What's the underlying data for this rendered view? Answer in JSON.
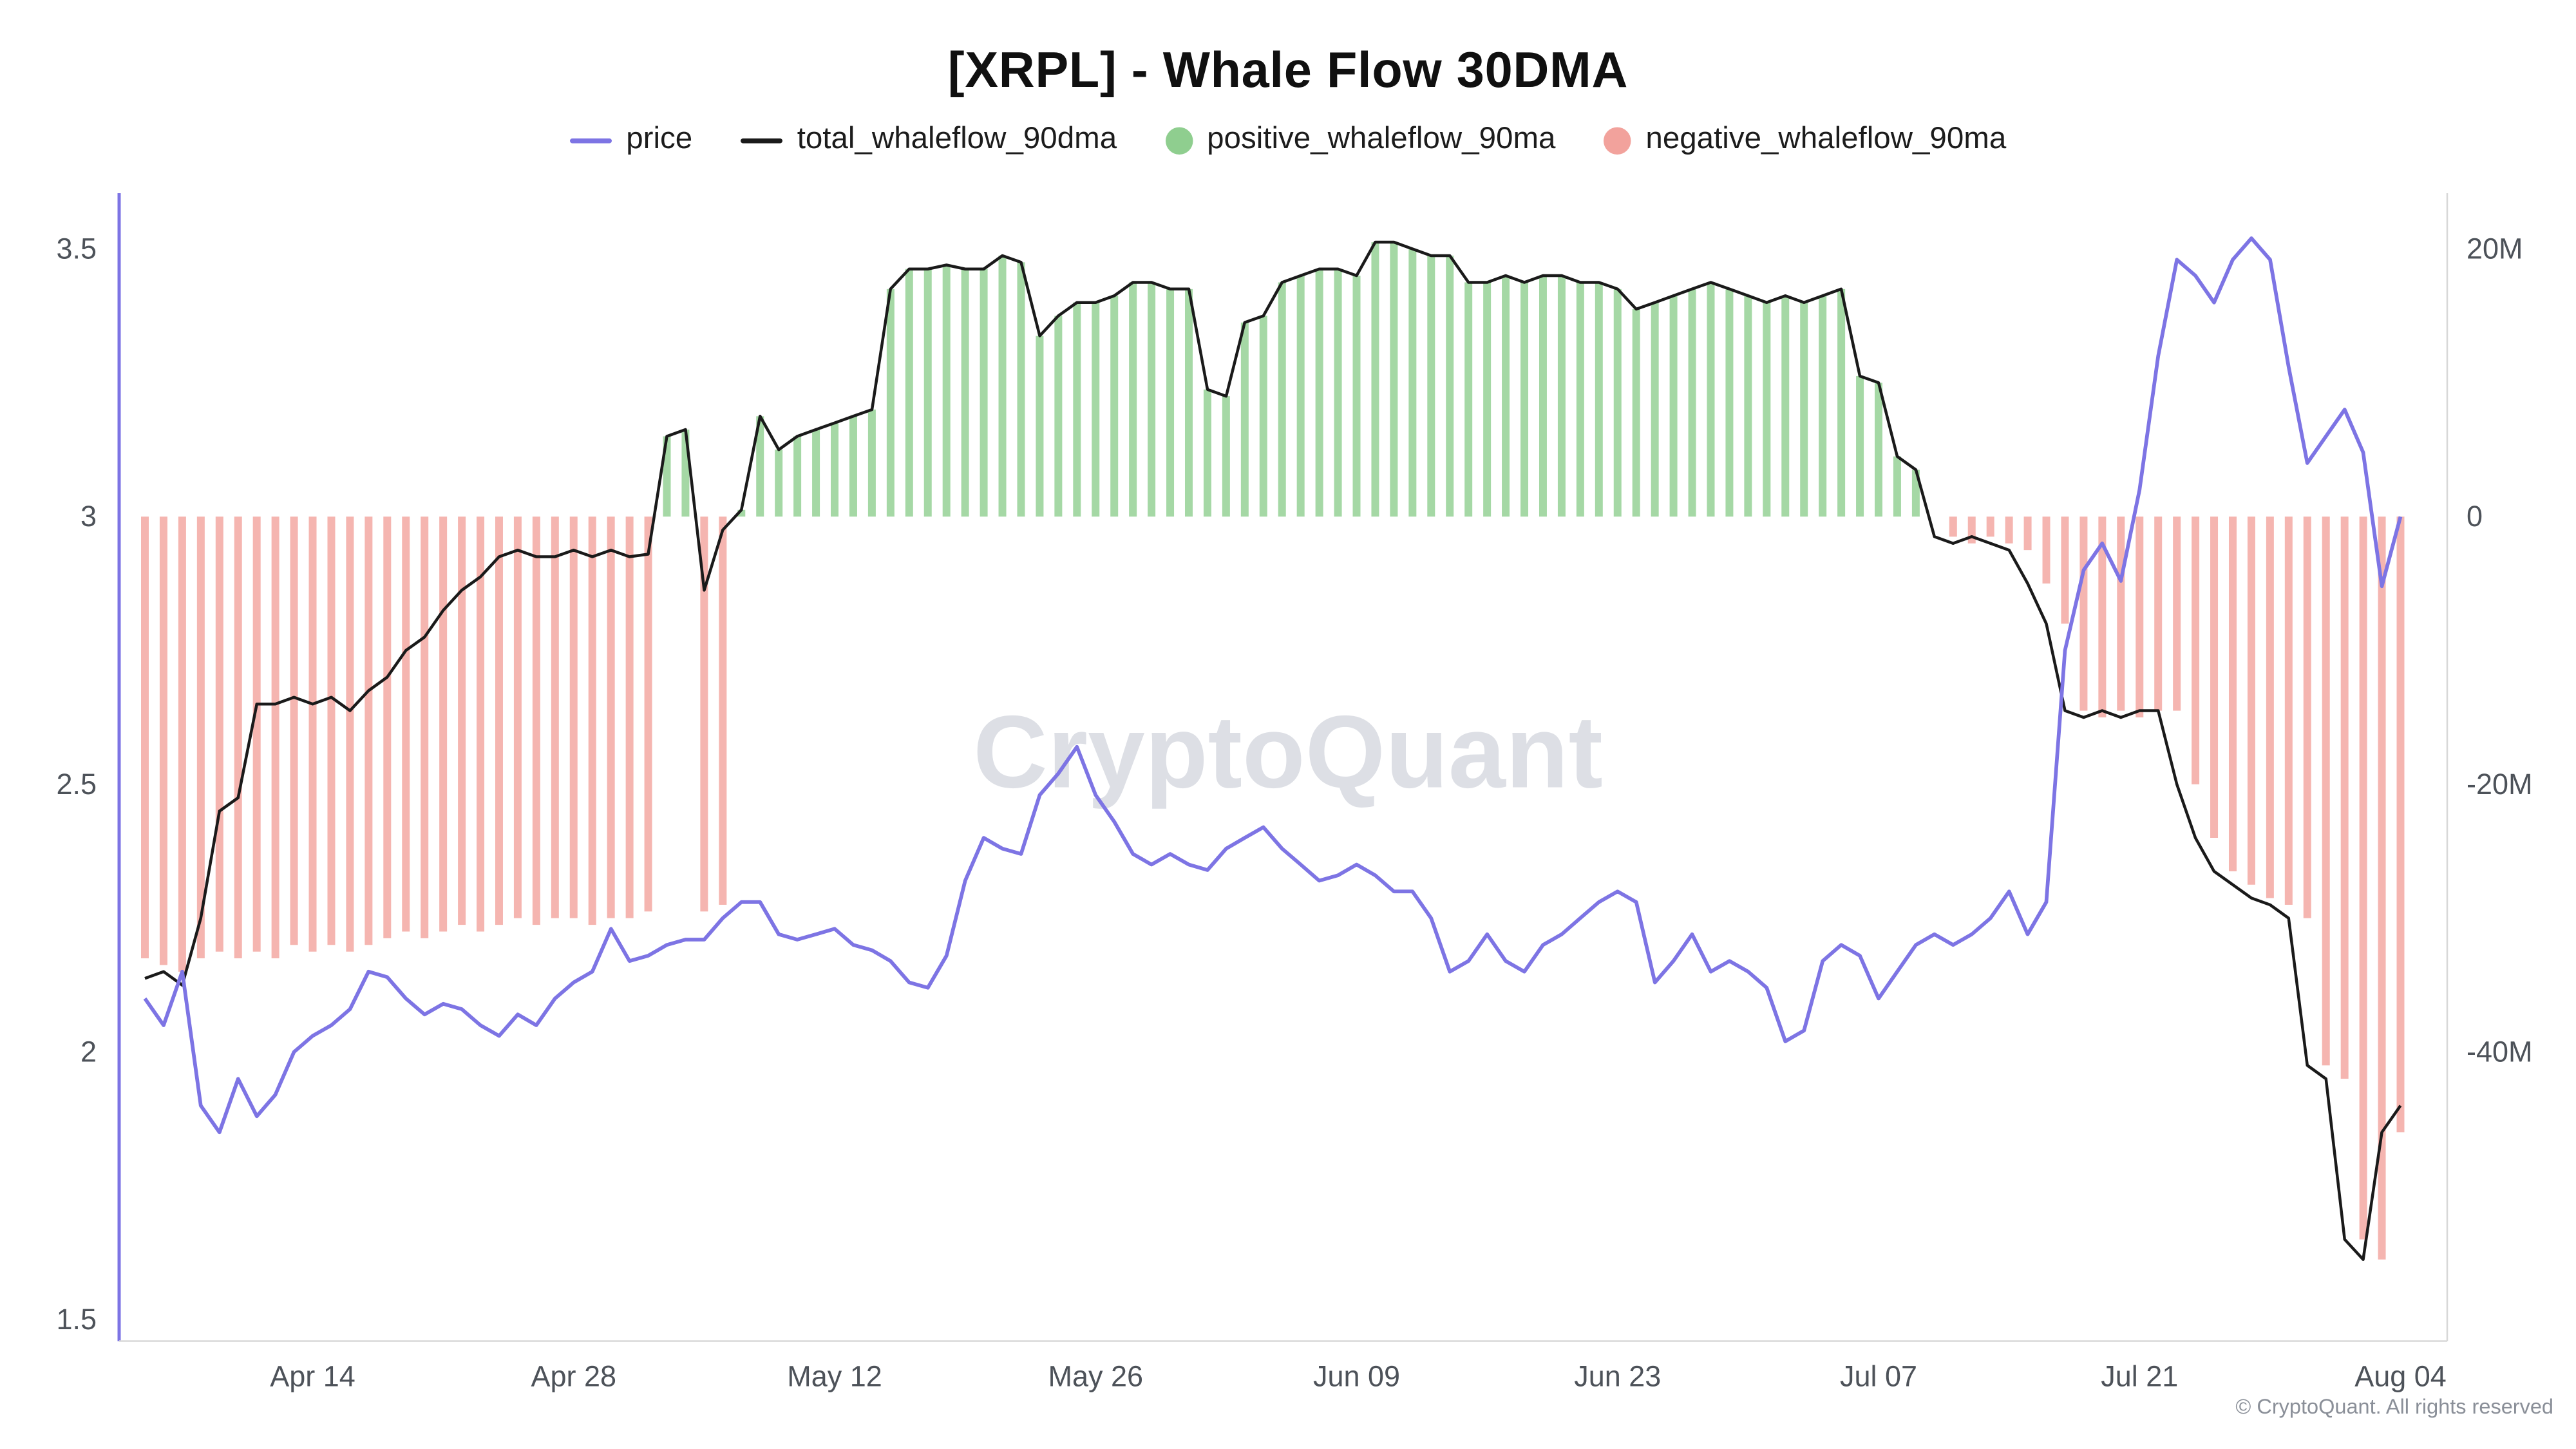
{
  "header": {
    "title": "[XRPL] - Whale Flow 30DMA"
  },
  "watermark": "CryptoQuant",
  "footer": {
    "copyright": "© CryptoQuant. All rights reserved"
  },
  "legend": {
    "items": [
      {
        "label": "price",
        "swatch": "line",
        "color": "#7d74e4"
      },
      {
        "label": "total_whaleflow_90dma",
        "swatch": "line",
        "color": "#1a1a1a"
      },
      {
        "label": "positive_whaleflow_90ma",
        "swatch": "dot",
        "color": "#8fce8f"
      },
      {
        "label": "negative_whaleflow_90ma",
        "swatch": "dot",
        "color": "#f2a29c"
      }
    ]
  },
  "axes": {
    "left": {
      "ticks": [
        {
          "label": "1.5",
          "value": 1.5
        },
        {
          "label": "2",
          "value": 2
        },
        {
          "label": "2.5",
          "value": 2.5
        },
        {
          "label": "3",
          "value": 3
        },
        {
          "label": "3.5",
          "value": 3.5
        }
      ]
    },
    "right": {
      "ticks": [
        {
          "label": "20M",
          "value": 20
        },
        {
          "label": "0",
          "value": 0
        },
        {
          "label": "-20M",
          "value": -20
        },
        {
          "label": "-40M",
          "value": -40
        }
      ]
    },
    "x": {
      "ticks": [
        {
          "label": "Apr 14",
          "index": 9
        },
        {
          "label": "Apr 28",
          "index": 23
        },
        {
          "label": "May 12",
          "index": 37
        },
        {
          "label": "May 26",
          "index": 51
        },
        {
          "label": "Jun 09",
          "index": 65
        },
        {
          "label": "Jun 23",
          "index": 79
        },
        {
          "label": "Jul 07",
          "index": 93
        },
        {
          "label": "Jul 21",
          "index": 107
        },
        {
          "label": "Aug 04",
          "index": 121
        }
      ]
    }
  },
  "chart_data": {
    "type": "mixed",
    "title": "[XRPL] - Whale Flow 30DMA",
    "series_types": {
      "price": "line",
      "total_whaleflow_90dma": "line",
      "positive_whaleflow_90ma": "bar",
      "negative_whaleflow_90ma": "bar"
    },
    "price_axis": {
      "side": "left",
      "min": 1.46,
      "max": 3.58,
      "ticks": [
        1.5,
        2,
        2.5,
        3,
        3.5
      ]
    },
    "flow_axis": {
      "side": "right",
      "unit": "M",
      "ticks": [
        20,
        0,
        -20,
        -40
      ],
      "zero_aligned_with_price": 3.0,
      "m_per_half_price_unit": 20
    },
    "colors": {
      "price": "#7d74e4",
      "total": "#1a1a1a",
      "positive": "#8fce8f",
      "negative": "#f2a29c",
      "axis_line": "#d8d8d8",
      "axis_text": "#4d5259"
    },
    "dates": [
      "Apr 05",
      "Apr 06",
      "Apr 07",
      "Apr 08",
      "Apr 09",
      "Apr 10",
      "Apr 11",
      "Apr 12",
      "Apr 13",
      "Apr 14",
      "Apr 15",
      "Apr 16",
      "Apr 17",
      "Apr 18",
      "Apr 19",
      "Apr 20",
      "Apr 21",
      "Apr 22",
      "Apr 23",
      "Apr 24",
      "Apr 25",
      "Apr 26",
      "Apr 27",
      "Apr 28",
      "Apr 29",
      "Apr 30",
      "May 01",
      "May 02",
      "May 03",
      "May 04",
      "May 05",
      "May 06",
      "May 07",
      "May 08",
      "May 09",
      "May 10",
      "May 11",
      "May 12",
      "May 13",
      "May 14",
      "May 15",
      "May 16",
      "May 17",
      "May 18",
      "May 19",
      "May 20",
      "May 21",
      "May 22",
      "May 23",
      "May 24",
      "May 25",
      "May 26",
      "May 27",
      "May 28",
      "May 29",
      "May 30",
      "May 31",
      "Jun 01",
      "Jun 02",
      "Jun 03",
      "Jun 04",
      "Jun 05",
      "Jun 06",
      "Jun 07",
      "Jun 08",
      "Jun 09",
      "Jun 10",
      "Jun 11",
      "Jun 12",
      "Jun 13",
      "Jun 14",
      "Jun 15",
      "Jun 16",
      "Jun 17",
      "Jun 18",
      "Jun 19",
      "Jun 20",
      "Jun 21",
      "Jun 22",
      "Jun 23",
      "Jun 24",
      "Jun 25",
      "Jun 26",
      "Jun 27",
      "Jun 28",
      "Jun 29",
      "Jun 30",
      "Jul 01",
      "Jul 02",
      "Jul 03",
      "Jul 04",
      "Jul 05",
      "Jul 06",
      "Jul 07",
      "Jul 08",
      "Jul 09",
      "Jul 10",
      "Jul 11",
      "Jul 12",
      "Jul 13",
      "Jul 14",
      "Jul 15",
      "Jul 16",
      "Jul 17",
      "Jul 18",
      "Jul 19",
      "Jul 20",
      "Jul 21",
      "Jul 22",
      "Jul 23",
      "Jul 24",
      "Jul 25",
      "Jul 26",
      "Jul 27",
      "Jul 28",
      "Jul 29",
      "Jul 30",
      "Jul 31",
      "Aug 01",
      "Aug 02",
      "Aug 03",
      "Aug 04"
    ],
    "price": [
      2.1,
      2.05,
      2.15,
      1.9,
      1.85,
      1.95,
      1.88,
      1.92,
      2.0,
      2.03,
      2.05,
      2.08,
      2.15,
      2.14,
      2.1,
      2.07,
      2.09,
      2.08,
      2.05,
      2.03,
      2.07,
      2.05,
      2.1,
      2.13,
      2.15,
      2.23,
      2.17,
      2.18,
      2.2,
      2.21,
      2.21,
      2.25,
      2.28,
      2.28,
      2.22,
      2.21,
      2.22,
      2.23,
      2.2,
      2.19,
      2.17,
      2.13,
      2.12,
      2.18,
      2.32,
      2.4,
      2.38,
      2.37,
      2.48,
      2.52,
      2.57,
      2.48,
      2.43,
      2.37,
      2.35,
      2.37,
      2.35,
      2.34,
      2.38,
      2.4,
      2.42,
      2.38,
      2.35,
      2.32,
      2.33,
      2.35,
      2.33,
      2.3,
      2.3,
      2.25,
      2.15,
      2.17,
      2.22,
      2.17,
      2.15,
      2.2,
      2.22,
      2.25,
      2.28,
      2.3,
      2.28,
      2.13,
      2.17,
      2.22,
      2.15,
      2.17,
      2.15,
      2.12,
      2.02,
      2.04,
      2.17,
      2.2,
      2.18,
      2.1,
      2.15,
      2.2,
      2.22,
      2.2,
      2.22,
      2.25,
      2.3,
      2.22,
      2.28,
      2.75,
      2.9,
      2.95,
      2.88,
      3.05,
      3.3,
      3.48,
      3.45,
      3.4,
      3.48,
      3.52,
      3.48,
      3.28,
      3.1,
      3.15,
      3.2,
      3.12,
      2.87,
      3.0
    ],
    "total_whaleflow_90dma": [
      -34.5,
      -34,
      -35,
      -30,
      -22,
      -21,
      -14,
      -14,
      -13.5,
      -14,
      -13.5,
      -14.5,
      -13,
      -12,
      -10,
      -9,
      -7,
      -5.5,
      -4.5,
      -3,
      -2.5,
      -3,
      -3,
      -2.5,
      -3,
      -2.5,
      -3,
      -2.8,
      6,
      6.5,
      -5.5,
      -1,
      0.5,
      7.5,
      5,
      6,
      6.5,
      7,
      7.5,
      8,
      17,
      18.5,
      18.5,
      18.8,
      18.5,
      18.5,
      19.5,
      19,
      13.5,
      15,
      16,
      16,
      16.5,
      17.5,
      17.5,
      17,
      17,
      9.5,
      9,
      14.5,
      15,
      17.5,
      18,
      18.5,
      18.5,
      18,
      20.5,
      20.5,
      20,
      19.5,
      19.5,
      17.5,
      17.5,
      18,
      17.5,
      18,
      18,
      17.5,
      17.5,
      17,
      15.5,
      16,
      16.5,
      17,
      17.5,
      17,
      16.5,
      16,
      16.5,
      16,
      16.5,
      17,
      10.5,
      10,
      4.5,
      3.5,
      -1.5,
      -2,
      -1.5,
      -2,
      -2.5,
      -5,
      -8,
      -14.5,
      -15,
      -14.5,
      -15,
      -14.5,
      -14.5,
      -20,
      -24,
      -26.5,
      -27.5,
      -28.5,
      -29,
      -30,
      -41,
      -42,
      -54,
      -55.5,
      -46,
      -44
    ],
    "positive_whaleflow_90ma": [
      0,
      0,
      0,
      0,
      0,
      0,
      0,
      0,
      0,
      0,
      0,
      0,
      0,
      0,
      0,
      0,
      0,
      0,
      0,
      0,
      0,
      0,
      0,
      0,
      0,
      0,
      0,
      0,
      6,
      6.5,
      0,
      0,
      0.5,
      7.5,
      5,
      6,
      6.5,
      7,
      7.5,
      8,
      17,
      18.5,
      18.5,
      18.8,
      18.5,
      18.5,
      19.5,
      19,
      13.5,
      15,
      16,
      16,
      16.5,
      17.5,
      17.5,
      17,
      17,
      9.5,
      9,
      14.5,
      15,
      17.5,
      18,
      18.5,
      18.5,
      18,
      20.5,
      20.5,
      20,
      19.5,
      19.5,
      17.5,
      17.5,
      18,
      17.5,
      18,
      18,
      17.5,
      17.5,
      17,
      15.5,
      16,
      16.5,
      17,
      17.5,
      17,
      16.5,
      16,
      16.5,
      16,
      16.5,
      17,
      10.5,
      10,
      4.5,
      3.5,
      0,
      0,
      0,
      0,
      0,
      0,
      0,
      0,
      0,
      0,
      0,
      0,
      0,
      0,
      0,
      0,
      0,
      0,
      0,
      0,
      0,
      0,
      0,
      0,
      0
    ],
    "negative_whaleflow_90ma": [
      -33,
      -33.5,
      -34,
      -33,
      -32.5,
      -33,
      -32.5,
      -33,
      -32,
      -32.5,
      -32,
      -32.5,
      -32,
      -31.5,
      -31,
      -31.5,
      -31,
      -30.5,
      -31,
      -30.5,
      -30,
      -30.5,
      -30,
      -30,
      -30.5,
      -30,
      -30,
      -29.5,
      0,
      0,
      -29.5,
      -29,
      0,
      0,
      0,
      0,
      0,
      0,
      0,
      0,
      0,
      0,
      0,
      0,
      0,
      0,
      0,
      0,
      0,
      0,
      0,
      0,
      0,
      0,
      0,
      0,
      0,
      0,
      0,
      0,
      0,
      0,
      0,
      0,
      0,
      0,
      0,
      0,
      0,
      0,
      0,
      0,
      0,
      0,
      0,
      0,
      0,
      0,
      0,
      0,
      0,
      0,
      0,
      0,
      0,
      0,
      0,
      0,
      0,
      0,
      0,
      0,
      0,
      0,
      0,
      0,
      0,
      -1.5,
      -2,
      -1.5,
      -2,
      -2.5,
      -5,
      -8,
      -14.5,
      -15,
      -14.5,
      -15,
      -14.5,
      -14.5,
      -20,
      -24,
      -26.5,
      -27.5,
      -28.5,
      -29,
      -30,
      -41,
      -42,
      -54,
      -55.5,
      -46,
      -44
    ]
  }
}
